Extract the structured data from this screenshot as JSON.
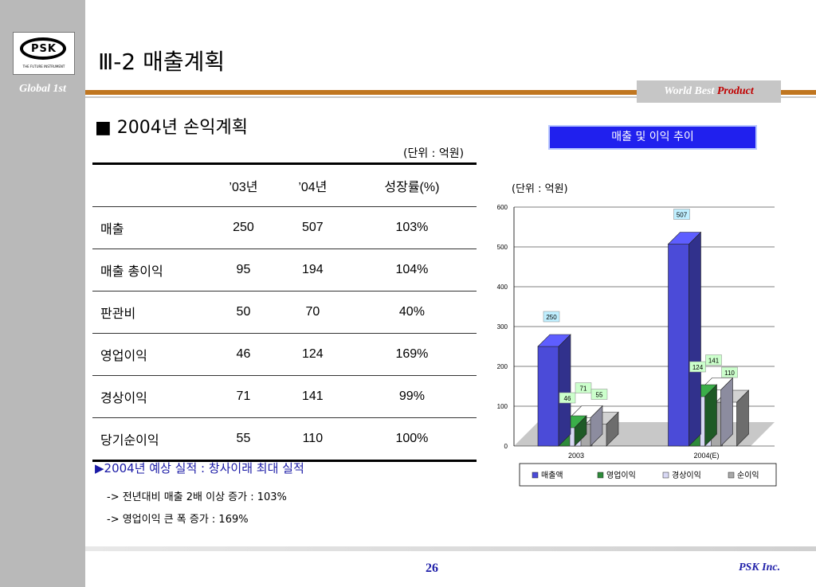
{
  "header": {
    "logo_text": "PSK",
    "logo_sub": "THE FUTURE INSTRUMENT",
    "sidebar_tag": "Global 1st",
    "title": "Ⅲ-2  매출계획",
    "banner_a": "World Best ",
    "banner_b": "Product"
  },
  "section": {
    "title": "■ 2004년 손익계획",
    "unit": "(단위 : 억원)"
  },
  "table": {
    "headers": [
      "",
      "’03년",
      "’04년",
      "성장률(%)"
    ],
    "rows": [
      {
        "label": "매출",
        "y03": "250",
        "y04": "507",
        "growth": "103%"
      },
      {
        "label": "매출 총이익",
        "y03": "95",
        "y04": "194",
        "growth": "104%"
      },
      {
        "label": "판관비",
        "y03": "50",
        "y04": "70",
        "growth": "40%"
      },
      {
        "label": "영업이익",
        "y03": "46",
        "y04": "124",
        "growth": "169%"
      },
      {
        "label": "경상이익",
        "y03": "71",
        "y04": "141",
        "growth": "99%"
      },
      {
        "label": "당기순이익",
        "y03": "55",
        "y04": "110",
        "growth": "100%"
      }
    ]
  },
  "notes": {
    "main": "▶2004년 예상 실적 : 창사이래 최대 실적",
    "sub1": "-> 전년대비 매출 2배 이상 증가 : 103%",
    "sub2": "-> 영업이익 큰 폭 증가 : 169%"
  },
  "chart_title": "매출 및 이익 추이",
  "chart_data": {
    "type": "bar",
    "unit_label": "(단위 : 억원)",
    "categories": [
      "2003",
      "2004(E)"
    ],
    "series": [
      {
        "name": "매출액",
        "values": [
          250,
          507
        ],
        "color": "#4b4bd8"
      },
      {
        "name": "영업이익",
        "values": [
          46,
          124
        ],
        "color": "#2e8b3a"
      },
      {
        "name": "경상이익",
        "values": [
          71,
          141
        ],
        "color": "#d8d8f4"
      },
      {
        "name": "순이익",
        "values": [
          55,
          110
        ],
        "color": "#a8a8a8"
      }
    ],
    "ylim": [
      0,
      600
    ],
    "yticks": [
      "0",
      "100",
      "200",
      "300",
      "400",
      "500",
      "600"
    ],
    "grid": true,
    "legend": "bottom"
  },
  "footer": {
    "page": "26",
    "company": "PSK Inc."
  }
}
